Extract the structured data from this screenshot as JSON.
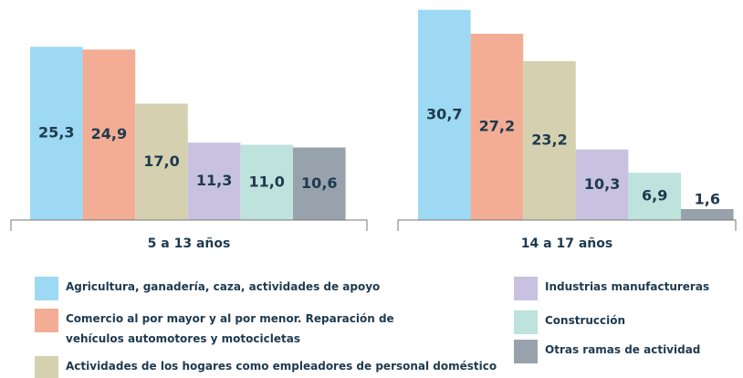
{
  "chart_data": {
    "type": "bar",
    "categories": [
      "5 a 13 años",
      "14 a 17 años"
    ],
    "series": [
      {
        "name": "Agricultura, ganadería, caza, actividades de apoyo",
        "color": "#9dd9f3",
        "values": [
          25.3,
          30.7
        ],
        "value_labels": [
          "25,3",
          "30,7"
        ]
      },
      {
        "name": "Comercio al por mayor y al por menor. Reparación de vehículos automotores y motocicletas",
        "color": "#f2ad94",
        "values": [
          24.9,
          27.2
        ],
        "value_labels": [
          "24,9",
          "27,2"
        ]
      },
      {
        "name": "Actividades de los hogares como empleadores de personal doméstico",
        "color": "#d5d1b0",
        "values": [
          17.0,
          23.2
        ],
        "value_labels": [
          "17,0",
          "23,2"
        ]
      },
      {
        "name": "Industrias manufactureras",
        "color": "#c8c1e0",
        "values": [
          11.3,
          10.3
        ],
        "value_labels": [
          "11,3",
          "10,3"
        ]
      },
      {
        "name": "Construcción",
        "color": "#bde3dc",
        "values": [
          11.0,
          6.9
        ],
        "value_labels": [
          "11,0",
          "6,9"
        ]
      },
      {
        "name": "Otras ramas de actividad",
        "color": "#98a2ad",
        "values": [
          10.6,
          1.6
        ],
        "value_labels": [
          "10,6",
          "1,6"
        ]
      }
    ]
  }
}
